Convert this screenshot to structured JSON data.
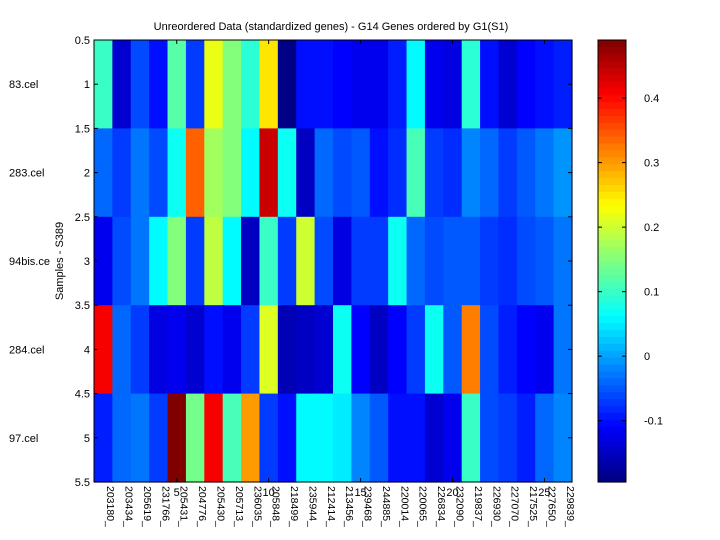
{
  "chart_data": {
    "type": "heatmap",
    "title": "Unreordered Data (standardized genes) - G14 Genes ordered by G1(S1)",
    "ylabel": "Samples - S389",
    "xlabel": "",
    "row_labels": [
      "83.cel",
      "283.cel",
      "94bis.ce",
      "284.cel",
      "97.cel"
    ],
    "column_labels": [
      "203180_",
      "203434_",
      "205619_",
      "231766_",
      "205431_",
      "204776_",
      "205430_",
      "205713_",
      "236035_",
      "205848_",
      "218499_",
      "235944_",
      "212414_",
      "213456_",
      "239468_",
      "244885_",
      "220014_",
      "220065_",
      "226834_",
      "232090_",
      "219837_",
      "226930_",
      "227070_",
      "217525_",
      "227650_",
      "229839_"
    ],
    "y_ticks": [
      "0.5",
      "1",
      "1.5",
      "2",
      "2.5",
      "3",
      "3.5",
      "4",
      "4.5",
      "5",
      "5.5"
    ],
    "x_ticks": [
      "5",
      "10",
      "15",
      "20",
      "25"
    ],
    "ylim": [
      0.5,
      5.5
    ],
    "xlim": [
      0.5,
      26.5
    ],
    "colormap": "jet",
    "clim": [
      -0.195,
      0.49
    ],
    "colorbar_ticks": [
      "0.4",
      "0.3",
      "0.2",
      "0.1",
      "0",
      "-0.1"
    ],
    "values": [
      [
        0.1,
        -0.14,
        -0.06,
        -0.1,
        0.12,
        -0.07,
        0.22,
        0.15,
        0.09,
        0.25,
        -0.19,
        -0.1,
        -0.1,
        -0.11,
        -0.12,
        -0.12,
        -0.09,
        0.06,
        -0.12,
        -0.13,
        0.09,
        -0.1,
        -0.14,
        -0.11,
        -0.1,
        -0.09
      ],
      [
        -0.04,
        -0.07,
        -0.03,
        -0.06,
        0.07,
        0.34,
        0.17,
        0.15,
        0.06,
        0.44,
        0.07,
        -0.15,
        -0.04,
        -0.06,
        -0.05,
        -0.1,
        -0.08,
        0.11,
        -0.07,
        -0.08,
        -0.02,
        -0.04,
        -0.07,
        -0.05,
        -0.03,
        -0.01
      ],
      [
        -0.12,
        -0.06,
        -0.03,
        0.06,
        0.15,
        -0.07,
        0.19,
        0.06,
        -0.15,
        0.1,
        -0.07,
        0.2,
        -0.06,
        -0.13,
        -0.07,
        -0.07,
        0.07,
        -0.04,
        -0.06,
        -0.05,
        -0.05,
        -0.07,
        -0.08,
        -0.06,
        -0.05,
        -0.03
      ],
      [
        0.41,
        -0.04,
        -0.07,
        -0.13,
        -0.12,
        -0.14,
        -0.1,
        -0.12,
        -0.07,
        0.21,
        -0.16,
        -0.15,
        -0.14,
        0.07,
        -0.11,
        -0.15,
        -0.11,
        -0.07,
        0.07,
        -0.05,
        0.32,
        -0.06,
        -0.09,
        -0.11,
        -0.12,
        -0.03
      ],
      [
        -0.09,
        -0.04,
        -0.03,
        -0.07,
        0.49,
        0.14,
        0.41,
        0.11,
        0.3,
        -0.07,
        -0.1,
        0.06,
        0.06,
        0.05,
        -0.02,
        -0.05,
        -0.1,
        -0.1,
        -0.14,
        -0.12,
        0.1,
        -0.06,
        -0.07,
        -0.09,
        -0.04,
        -0.02
      ]
    ]
  }
}
